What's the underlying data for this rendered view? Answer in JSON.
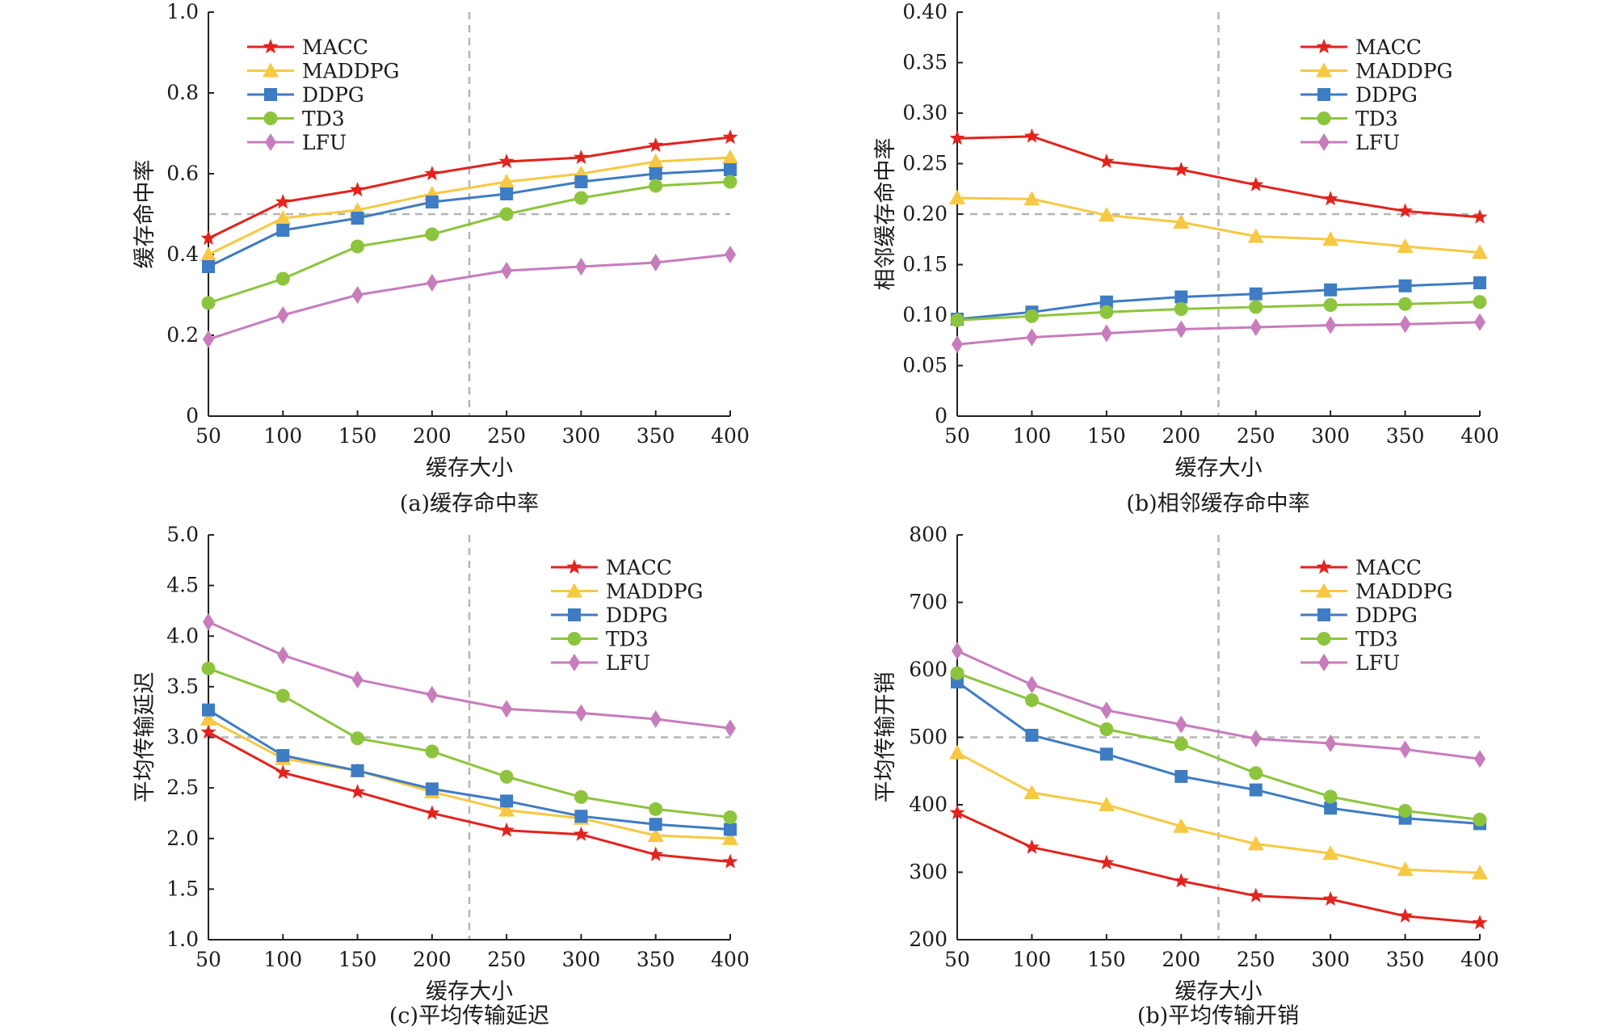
{
  "series_styles": [
    {
      "name": "MACC",
      "color": "#e3231d",
      "marker": "star"
    },
    {
      "name": "MADDPG",
      "color": "#f7c843",
      "marker": "triangle"
    },
    {
      "name": "DDPG",
      "color": "#3e7cc4",
      "marker": "square"
    },
    {
      "name": "TD3",
      "color": "#8dc43e",
      "marker": "circle"
    },
    {
      "name": "LFU",
      "color": "#c77cbc",
      "marker": "diamond"
    }
  ],
  "chart_data": [
    {
      "type": "line",
      "caption": "(a)缓存命中率",
      "xlabel": "缓存大小",
      "ylabel": "缓存命中率",
      "x": [
        50,
        100,
        150,
        200,
        250,
        300,
        350,
        400
      ],
      "xlim": [
        50,
        400
      ],
      "ylim": [
        0,
        1.0
      ],
      "yticks": [
        "0",
        "0.2",
        "0.4",
        "0.6",
        "0.8",
        "1.0"
      ],
      "xticks": [
        "50",
        "100",
        "150",
        "200",
        "250",
        "300",
        "350",
        "400"
      ],
      "legend_position": "top-left",
      "reference_lines": {
        "x": 225,
        "y": 0.5
      },
      "series": [
        {
          "name": "MACC",
          "values": [
            0.44,
            0.53,
            0.56,
            0.6,
            0.63,
            0.64,
            0.67,
            0.69
          ]
        },
        {
          "name": "MADDPG",
          "values": [
            0.4,
            0.49,
            0.51,
            0.55,
            0.58,
            0.6,
            0.63,
            0.64
          ]
        },
        {
          "name": "DDPG",
          "values": [
            0.37,
            0.46,
            0.49,
            0.53,
            0.55,
            0.58,
            0.6,
            0.61
          ]
        },
        {
          "name": "TD3",
          "values": [
            0.28,
            0.34,
            0.42,
            0.45,
            0.5,
            0.54,
            0.57,
            0.58
          ]
        },
        {
          "name": "LFU",
          "values": [
            0.19,
            0.25,
            0.3,
            0.33,
            0.36,
            0.37,
            0.38,
            0.4
          ]
        }
      ]
    },
    {
      "type": "line",
      "caption": "(b)相邻缓存命中率",
      "xlabel": "缓存大小",
      "ylabel": "相邻缓存命中率",
      "x": [
        50,
        100,
        150,
        200,
        250,
        300,
        350,
        400
      ],
      "xlim": [
        50,
        400
      ],
      "ylim": [
        0,
        0.4
      ],
      "yticks": [
        "0",
        "0.05",
        "0.10",
        "0.15",
        "0.20",
        "0.25",
        "0.30",
        "0.35",
        "0.40"
      ],
      "xticks": [
        "50",
        "100",
        "150",
        "200",
        "250",
        "300",
        "350",
        "400"
      ],
      "legend_position": "top-right",
      "reference_lines": {
        "x": 225,
        "y": 0.2
      },
      "series": [
        {
          "name": "MACC",
          "values": [
            0.275,
            0.277,
            0.252,
            0.244,
            0.229,
            0.215,
            0.203,
            0.197
          ]
        },
        {
          "name": "MADDPG",
          "values": [
            0.216,
            0.215,
            0.199,
            0.192,
            0.178,
            0.175,
            0.168,
            0.162
          ]
        },
        {
          "name": "DDPG",
          "values": [
            0.096,
            0.103,
            0.113,
            0.118,
            0.121,
            0.125,
            0.129,
            0.132
          ]
        },
        {
          "name": "TD3",
          "values": [
            0.095,
            0.099,
            0.103,
            0.106,
            0.108,
            0.11,
            0.111,
            0.113
          ]
        },
        {
          "name": "LFU",
          "values": [
            0.071,
            0.078,
            0.082,
            0.086,
            0.088,
            0.09,
            0.091,
            0.093
          ]
        }
      ]
    },
    {
      "type": "line",
      "caption": "(c)平均传输延迟",
      "xlabel": "缓存大小",
      "ylabel": "平均传输延迟",
      "x": [
        50,
        100,
        150,
        200,
        250,
        300,
        350,
        400
      ],
      "xlim": [
        50,
        400
      ],
      "ylim": [
        1.0,
        5.0
      ],
      "yticks": [
        "1.0",
        "1.5",
        "2.0",
        "2.5",
        "3.0",
        "3.5",
        "4.0",
        "4.5",
        "5.0"
      ],
      "xticks": [
        "50",
        "100",
        "150",
        "200",
        "250",
        "300",
        "350",
        "400"
      ],
      "legend_position": "top-right",
      "reference_lines": {
        "x": 225,
        "y": 3.0
      },
      "series": [
        {
          "name": "MACC",
          "values": [
            3.05,
            2.65,
            2.46,
            2.25,
            2.08,
            2.04,
            1.84,
            1.77
          ]
        },
        {
          "name": "MADDPG",
          "values": [
            3.18,
            2.79,
            2.67,
            2.46,
            2.28,
            2.2,
            2.03,
            2.0
          ]
        },
        {
          "name": "DDPG",
          "values": [
            3.27,
            2.82,
            2.67,
            2.49,
            2.37,
            2.22,
            2.14,
            2.09
          ]
        },
        {
          "name": "TD3",
          "values": [
            3.68,
            3.41,
            2.99,
            2.86,
            2.61,
            2.41,
            2.29,
            2.21
          ]
        },
        {
          "name": "LFU",
          "values": [
            4.14,
            3.81,
            3.57,
            3.42,
            3.28,
            3.24,
            3.18,
            3.09
          ]
        }
      ]
    },
    {
      "type": "line",
      "caption": "(b)平均传输开销",
      "xlabel": "缓存大小",
      "ylabel": "平均传输开销",
      "x": [
        50,
        100,
        150,
        200,
        250,
        300,
        350,
        400
      ],
      "xlim": [
        50,
        400
      ],
      "ylim": [
        200,
        800
      ],
      "yticks": [
        "200",
        "300",
        "400",
        "500",
        "600",
        "700",
        "800"
      ],
      "xticks": [
        "50",
        "100",
        "150",
        "200",
        "250",
        "300",
        "350",
        "400"
      ],
      "legend_position": "top-right",
      "reference_lines": {
        "x": 225,
        "y": 500
      },
      "series": [
        {
          "name": "MACC",
          "values": [
            388,
            337,
            314,
            287,
            265,
            260,
            235,
            225
          ]
        },
        {
          "name": "MADDPG",
          "values": [
            477,
            418,
            400,
            368,
            342,
            328,
            304,
            299
          ]
        },
        {
          "name": "DDPG",
          "values": [
            582,
            503,
            475,
            442,
            422,
            395,
            380,
            372
          ]
        },
        {
          "name": "TD3",
          "values": [
            595,
            555,
            512,
            490,
            447,
            412,
            391,
            378
          ]
        },
        {
          "name": "LFU",
          "values": [
            628,
            578,
            540,
            519,
            498,
            491,
            482,
            468
          ]
        }
      ]
    }
  ]
}
